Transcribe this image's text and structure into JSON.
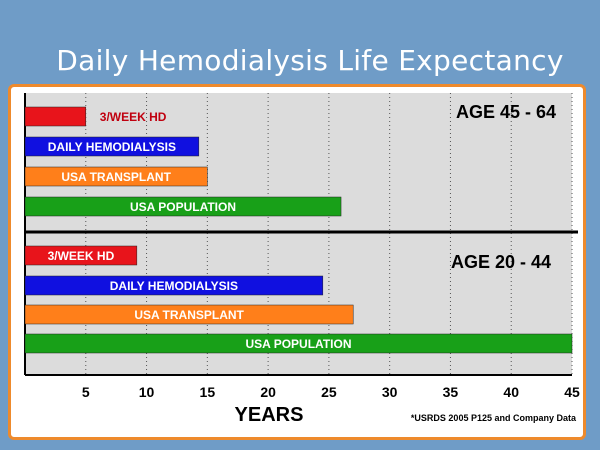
{
  "slide": {
    "title": "Daily Hemodialysis Life Expectancy"
  },
  "chart_data": {
    "type": "bar",
    "orientation": "horizontal",
    "xlabel": "YEARS",
    "xlim": [
      0,
      45
    ],
    "xticks": [
      5,
      10,
      15,
      20,
      25,
      30,
      35,
      40,
      45
    ],
    "grid": true,
    "source_note": "*USRDS 2005 P125 and Company Data",
    "groups": [
      {
        "label": "AGE 45 - 64",
        "bars": [
          {
            "label": "3/WEEK HD",
            "value": 5,
            "color": "#e8141b",
            "text_color": "#c0000f",
            "label_outside": true
          },
          {
            "label": "DAILY HEMODIALYSIS",
            "value": 14.3,
            "color": "#1010e0",
            "text_color": "#ffffff"
          },
          {
            "label": "USA TRANSPLANT",
            "value": 15,
            "color": "#ff7f1a",
            "text_color": "#ffffff"
          },
          {
            "label": "USA POPULATION",
            "value": 26,
            "color": "#18a018",
            "text_color": "#ffffff"
          }
        ]
      },
      {
        "label": "AGE 20 - 44",
        "bars": [
          {
            "label": "3/WEEK HD",
            "value": 9.2,
            "color": "#e8141b",
            "text_color": "#ffffff"
          },
          {
            "label": "DAILY HEMODIALYSIS",
            "value": 24.5,
            "color": "#1010e0",
            "text_color": "#ffffff"
          },
          {
            "label": "USA TRANSPLANT",
            "value": 27,
            "color": "#ff7f1a",
            "text_color": "#ffffff"
          },
          {
            "label": "USA POPULATION",
            "value": 46,
            "color": "#18a018",
            "text_color": "#ffffff"
          }
        ]
      }
    ]
  }
}
